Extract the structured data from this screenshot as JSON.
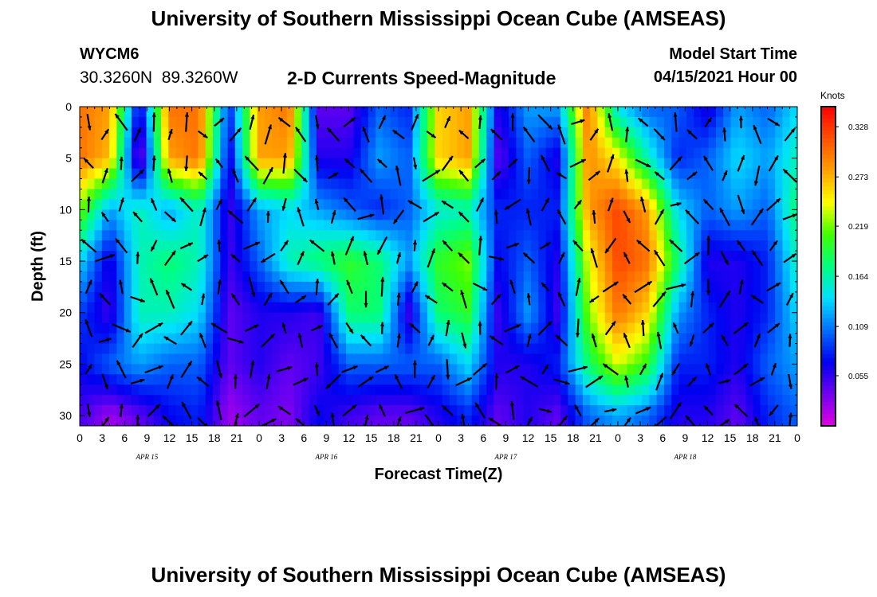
{
  "header": {
    "title": "University of Southern Mississippi Ocean Cube (AMSEAS)",
    "station_id": "WYCM6",
    "station_coords": "30.3260N  89.3260W",
    "subtitle": "2-D Currents Speed-Magnitude",
    "model_start_label": "Model Start Time",
    "model_start_value": "04/15/2021 Hour 00"
  },
  "footer": {
    "title": "University of Southern Mississippi Ocean Cube (AMSEAS)"
  },
  "chart_data": {
    "type": "heatmap",
    "title": "2-D Currents Speed-Magnitude",
    "xlabel": "Forecast Time(Z)",
    "ylabel": "Depth (ft)",
    "x_ticks": [
      "0",
      "3",
      "6",
      "9",
      "12",
      "15",
      "18",
      "21",
      "0",
      "3",
      "6",
      "9",
      "12",
      "15",
      "18",
      "21",
      "0",
      "3",
      "6",
      "9",
      "12",
      "15",
      "18",
      "21",
      "0",
      "3",
      "6",
      "9",
      "12",
      "15",
      "18",
      "21",
      "0"
    ],
    "date_labels": [
      "APR 15",
      "APR 16",
      "APR 17",
      "APR 18"
    ],
    "y_ticks": [
      0,
      5,
      10,
      15,
      20,
      25,
      30
    ],
    "ylim": [
      0,
      31
    ],
    "y_inverted": true,
    "colorbar": {
      "unit_label": "Knots",
      "ticks": [
        "0.328",
        "0.273",
        "0.219",
        "0.164",
        "0.109",
        "0.055"
      ],
      "palette": [
        "#e000e0",
        "#7000f0",
        "#0000f0",
        "#0070ff",
        "#00e0ff",
        "#00ff80",
        "#40ff00",
        "#ffff00",
        "#ffa000",
        "#ff5000",
        "#ff0000"
      ]
    },
    "time_steps": 97,
    "depth_range_ft": [
      0,
      31
    ],
    "speed_columns": [
      {
        "t": 0,
        "d": [
          0.3,
          0.3,
          0.22,
          0.14,
          0.09,
          0.07,
          0.05
        ]
      },
      {
        "t": 4,
        "d": [
          0.28,
          0.27,
          0.12,
          0.06,
          0.05,
          0.1,
          0.02
        ]
      },
      {
        "t": 8,
        "d": [
          0.06,
          0.02,
          0.16,
          0.16,
          0.16,
          0.12,
          0.04
        ]
      },
      {
        "t": 12,
        "d": [
          0.3,
          0.28,
          0.12,
          0.18,
          0.16,
          0.1,
          0.07
        ]
      },
      {
        "t": 16,
        "d": [
          0.3,
          0.3,
          0.16,
          0.16,
          0.14,
          0.1,
          0.08
        ]
      },
      {
        "t": 20,
        "d": [
          0.08,
          0.06,
          0.05,
          0.05,
          0.04,
          0.04,
          0.02
        ]
      },
      {
        "t": 24,
        "d": [
          0.28,
          0.28,
          0.12,
          0.1,
          0.06,
          0.06,
          0.04
        ]
      },
      {
        "t": 28,
        "d": [
          0.3,
          0.28,
          0.14,
          0.16,
          0.06,
          0.04,
          0.03
        ]
      },
      {
        "t": 32,
        "d": [
          0.04,
          0.06,
          0.12,
          0.18,
          0.05,
          0.05,
          0.07
        ]
      },
      {
        "t": 36,
        "d": [
          0.04,
          0.06,
          0.1,
          0.2,
          0.18,
          0.1,
          0.05
        ]
      },
      {
        "t": 40,
        "d": [
          0.1,
          0.12,
          0.08,
          0.18,
          0.18,
          0.1,
          0.04
        ]
      },
      {
        "t": 44,
        "d": [
          0.08,
          0.1,
          0.1,
          0.12,
          0.05,
          0.1,
          0.04
        ]
      },
      {
        "t": 48,
        "d": [
          0.26,
          0.26,
          0.15,
          0.2,
          0.18,
          0.1,
          0.06
        ]
      },
      {
        "t": 52,
        "d": [
          0.28,
          0.28,
          0.16,
          0.22,
          0.2,
          0.14,
          0.08
        ]
      },
      {
        "t": 56,
        "d": [
          0.06,
          0.04,
          0.08,
          0.07,
          0.05,
          0.06,
          0.04
        ]
      },
      {
        "t": 60,
        "d": [
          0.12,
          0.1,
          0.08,
          0.1,
          0.12,
          0.06,
          0.06
        ]
      },
      {
        "t": 64,
        "d": [
          0.12,
          0.06,
          0.08,
          0.06,
          0.05,
          0.08,
          0.04
        ]
      },
      {
        "t": 68,
        "d": [
          0.3,
          0.29,
          0.28,
          0.24,
          0.22,
          0.18,
          0.1
        ]
      },
      {
        "t": 72,
        "d": [
          0.14,
          0.25,
          0.32,
          0.32,
          0.3,
          0.24,
          0.12
        ]
      },
      {
        "t": 76,
        "d": [
          0.1,
          0.16,
          0.28,
          0.3,
          0.26,
          0.2,
          0.1
        ]
      },
      {
        "t": 80,
        "d": [
          0.1,
          0.08,
          0.14,
          0.18,
          0.12,
          0.08,
          0.06
        ]
      },
      {
        "t": 84,
        "d": [
          0.06,
          0.1,
          0.1,
          0.06,
          0.08,
          0.08,
          0.06
        ]
      },
      {
        "t": 88,
        "d": [
          0.12,
          0.14,
          0.12,
          0.06,
          0.06,
          0.06,
          0.04
        ]
      },
      {
        "t": 92,
        "d": [
          0.1,
          0.12,
          0.1,
          0.08,
          0.08,
          0.1,
          0.08
        ]
      },
      {
        "t": 96,
        "d": [
          0.14,
          0.16,
          0.18,
          0.16,
          0.14,
          0.12,
          0.1
        ]
      }
    ],
    "speed_depths_ft": [
      0,
      5,
      10,
      15,
      20,
      25,
      30
    ]
  }
}
